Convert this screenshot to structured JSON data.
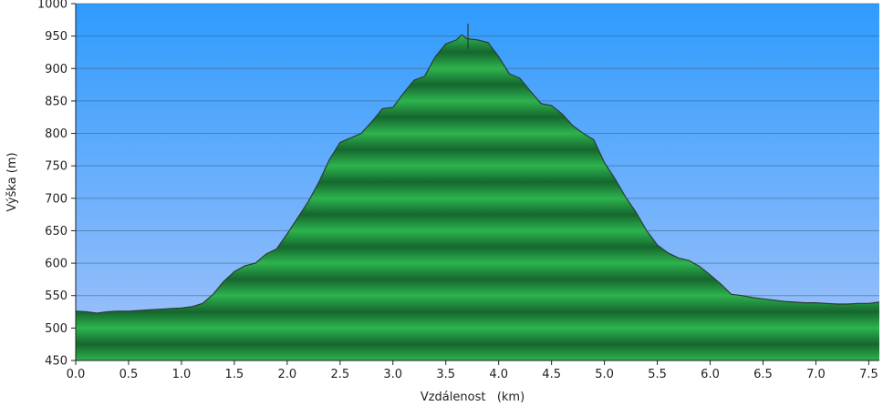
{
  "chart_data": {
    "type": "area",
    "title": "",
    "xlabel": "Vzdálenost   (km)",
    "ylabel": "Výška (m)",
    "xlim": [
      0,
      7.6
    ],
    "ylim": [
      450,
      1000
    ],
    "x_ticks": [
      "0.0",
      "0.5",
      "1.0",
      "1.5",
      "2.0",
      "2.5",
      "3.0",
      "3.5",
      "4.0",
      "4.5",
      "5.0",
      "5.5",
      "6.0",
      "6.5",
      "7.0",
      "7.5"
    ],
    "y_ticks": [
      "450",
      "500",
      "550",
      "600",
      "650",
      "700",
      "750",
      "800",
      "850",
      "900",
      "950",
      "1000"
    ],
    "grid": true,
    "colors": {
      "sky_top": "#2e9bfd",
      "sky_bottom": "#a4c3fa",
      "fill_light": "#2db34e",
      "fill_dark": "#15672e",
      "outline": "#2d3b33"
    },
    "x": [
      0.0,
      0.1,
      0.2,
      0.3,
      0.4,
      0.5,
      0.6,
      0.7,
      0.8,
      0.9,
      1.0,
      1.1,
      1.2,
      1.3,
      1.4,
      1.5,
      1.6,
      1.7,
      1.8,
      1.9,
      2.0,
      2.1,
      2.2,
      2.3,
      2.4,
      2.5,
      2.6,
      2.7,
      2.8,
      2.9,
      3.0,
      3.1,
      3.2,
      3.3,
      3.4,
      3.5,
      3.6,
      3.65,
      3.7,
      3.8,
      3.9,
      4.0,
      4.1,
      4.2,
      4.3,
      4.4,
      4.5,
      4.6,
      4.7,
      4.8,
      4.9,
      5.0,
      5.1,
      5.2,
      5.3,
      5.4,
      5.5,
      5.6,
      5.7,
      5.8,
      5.9,
      6.0,
      6.1,
      6.2,
      6.3,
      6.4,
      6.5,
      6.6,
      6.7,
      6.8,
      6.9,
      7.0,
      7.1,
      7.2,
      7.3,
      7.4,
      7.5,
      7.6
    ],
    "y": [
      526,
      525,
      523,
      525,
      526,
      526,
      527,
      528,
      529,
      530,
      531,
      533,
      538,
      552,
      572,
      587,
      596,
      600,
      614,
      622,
      645,
      670,
      695,
      725,
      760,
      786,
      793,
      800,
      818,
      838,
      840,
      862,
      882,
      888,
      918,
      938,
      944,
      952,
      946,
      944,
      940,
      918,
      892,
      885,
      865,
      846,
      843,
      830,
      812,
      800,
      790,
      755,
      730,
      702,
      678,
      650,
      628,
      616,
      608,
      604,
      595,
      582,
      568,
      552,
      550,
      547,
      545,
      543,
      541,
      540,
      539,
      539,
      538,
      537,
      537,
      538,
      538,
      540
    ]
  }
}
